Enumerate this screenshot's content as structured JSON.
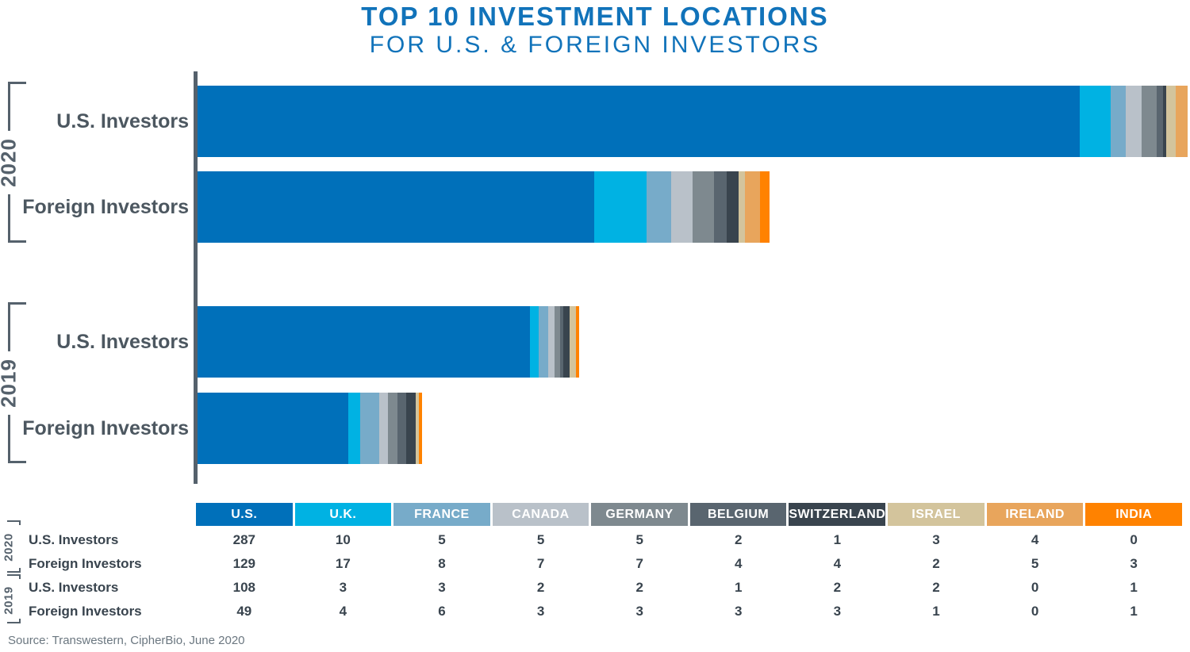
{
  "title": {
    "line1": "TOP 10 INVESTMENT LOCATIONS",
    "line2": "FOR U.S. & FOREIGN INVESTORS",
    "accent_color": "#1173BA"
  },
  "source": "Source: Transwestern, CipherBio, June 2020",
  "chart_data": {
    "type": "bar",
    "orientation": "horizontal",
    "stacked": true,
    "title": "TOP 10 INVESTMENT LOCATIONS FOR U.S. & FOREIGN INVESTORS",
    "categories": [
      "U.S.",
      "U.K.",
      "FRANCE",
      "CANADA",
      "GERMANY",
      "BELGIUM",
      "SWITZERLAND",
      "ISRAEL",
      "IRELAND",
      "INDIA"
    ],
    "colors": [
      "#0070BA",
      "#00B2E3",
      "#77ABC9",
      "#B9C1C9",
      "#7E898F",
      "#59656F",
      "#39444E",
      "#D3C49C",
      "#E8A55C",
      "#FF8200"
    ],
    "axis_color": "#55616C",
    "legend_position": "bottom-table",
    "xlim": [
      0,
      322
    ],
    "groups": [
      {
        "year": "2020",
        "rows": [
          {
            "label": "U.S. Investors",
            "values": [
              287,
              10,
              5,
              5,
              5,
              2,
              1,
              3,
              4,
              0
            ]
          },
          {
            "label": "Foreign Investors",
            "values": [
              129,
              17,
              8,
              7,
              7,
              4,
              4,
              2,
              5,
              3
            ]
          }
        ]
      },
      {
        "year": "2019",
        "rows": [
          {
            "label": "U.S. Investors",
            "values": [
              108,
              3,
              3,
              2,
              2,
              1,
              2,
              2,
              0,
              1
            ]
          },
          {
            "label": "Foreign Investors",
            "values": [
              49,
              4,
              6,
              3,
              3,
              3,
              3,
              1,
              0,
              1
            ]
          }
        ]
      }
    ]
  }
}
